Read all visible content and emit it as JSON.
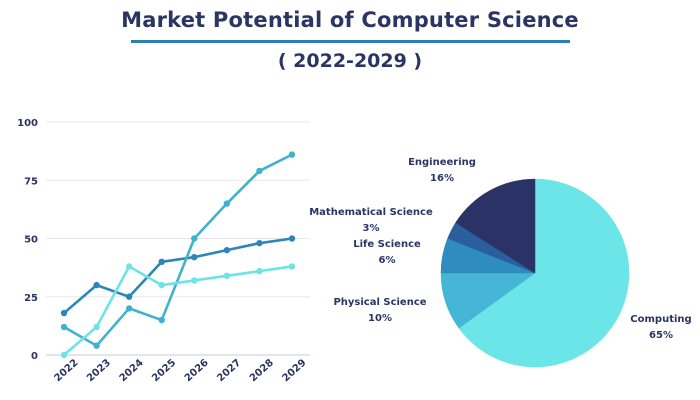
{
  "header": {
    "title": "Market Potential of Computer Science",
    "subtitle": "( 2022-2029 )"
  },
  "chart_data": [
    {
      "type": "line",
      "title": "",
      "xlabel": "",
      "ylabel": "",
      "x": [
        "2022",
        "2023",
        "2024",
        "2025",
        "2026",
        "2027",
        "2028",
        "2029"
      ],
      "y_ticks": [
        "0",
        "25",
        "50",
        "75",
        "100"
      ],
      "ylim": [
        0,
        100
      ],
      "grid": true,
      "series": [
        {
          "color": "#2e86b8",
          "values": [
            18,
            30,
            25,
            40,
            42,
            45,
            48,
            50
          ]
        },
        {
          "color": "#3fb3cc",
          "values": [
            12,
            4,
            20,
            15,
            50,
            65,
            79,
            86
          ]
        },
        {
          "color": "#6ee3e6",
          "values": [
            0,
            12,
            38,
            30,
            32,
            34,
            36,
            38
          ]
        }
      ]
    },
    {
      "type": "pie",
      "slices": [
        {
          "label": "Computing",
          "value": 65,
          "display": "65%",
          "color": "#6be5e8"
        },
        {
          "label": "Physical Science",
          "value": 10,
          "display": "10%",
          "color": "#45b6d6"
        },
        {
          "label": "Life Science",
          "value": 6,
          "display": "6%",
          "color": "#2e8cbe"
        },
        {
          "label": "Mathematical Science",
          "value": 3,
          "display": "3%",
          "color": "#2b5e9c"
        },
        {
          "label": "Engineering",
          "value": 16,
          "display": "16%",
          "color": "#2b3366"
        }
      ]
    }
  ]
}
